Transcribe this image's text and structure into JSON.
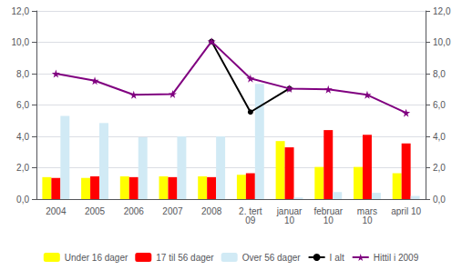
{
  "chart_data": {
    "type": "bar",
    "categories": [
      "2004",
      "2005",
      "2006",
      "2007",
      "2008",
      "2. tert\n09",
      "januar\n10",
      "februar\n10",
      "mars\n10",
      "april 10"
    ],
    "series": [
      {
        "name": "Under 16 dager",
        "type": "bar",
        "color": "#ffff00",
        "values": [
          1.4,
          1.35,
          1.45,
          1.45,
          1.45,
          1.55,
          3.7,
          2.05,
          2.05,
          1.65
        ]
      },
      {
        "name": "17 til 56 dager",
        "type": "bar",
        "color": "#ff0000",
        "values": [
          1.35,
          1.45,
          1.4,
          1.4,
          1.4,
          1.65,
          3.3,
          4.4,
          4.1,
          3.55
        ]
      },
      {
        "name": "Over 56 dager",
        "type": "bar",
        "color": "#d1eaf5",
        "values": [
          5.3,
          4.85,
          3.95,
          4.0,
          4.0,
          7.35,
          0.1,
          0.45,
          0.4,
          0.2
        ]
      },
      {
        "name": "I alt",
        "type": "line",
        "axis": "y2",
        "color": "#000000",
        "marker": "circle",
        "values": [
          null,
          null,
          null,
          null,
          10.05,
          5.55,
          7.05,
          null,
          null,
          null
        ]
      },
      {
        "name": "Hittil i 2009",
        "type": "line",
        "axis": "y2",
        "color": "#800080",
        "marker": "star",
        "values": [
          8.0,
          7.55,
          6.65,
          6.7,
          10.05,
          7.7,
          7.05,
          7.0,
          6.65,
          5.5
        ]
      }
    ],
    "ylim": [
      0,
      12
    ],
    "yticks": [
      {
        "value": 0,
        "label": "0,0"
      },
      {
        "value": 2,
        "label": "2,0"
      },
      {
        "value": 4,
        "label": "4,0"
      },
      {
        "value": 6,
        "label": "6,0"
      },
      {
        "value": 8,
        "label": "8,0"
      },
      {
        "value": 10,
        "label": "10,0"
      },
      {
        "value": 12,
        "label": "12,0"
      }
    ],
    "y2lim": [
      0,
      12
    ],
    "y2ticks": [
      {
        "value": 0,
        "label": "0,0"
      },
      {
        "value": 2,
        "label": "2,0"
      },
      {
        "value": 4,
        "label": "4,0"
      },
      {
        "value": 6,
        "label": "6,0"
      },
      {
        "value": 8,
        "label": "8,0"
      },
      {
        "value": 10,
        "label": "10,0"
      },
      {
        "value": 12,
        "label": "12,0"
      }
    ],
    "grid": true,
    "legend": "bottom"
  }
}
